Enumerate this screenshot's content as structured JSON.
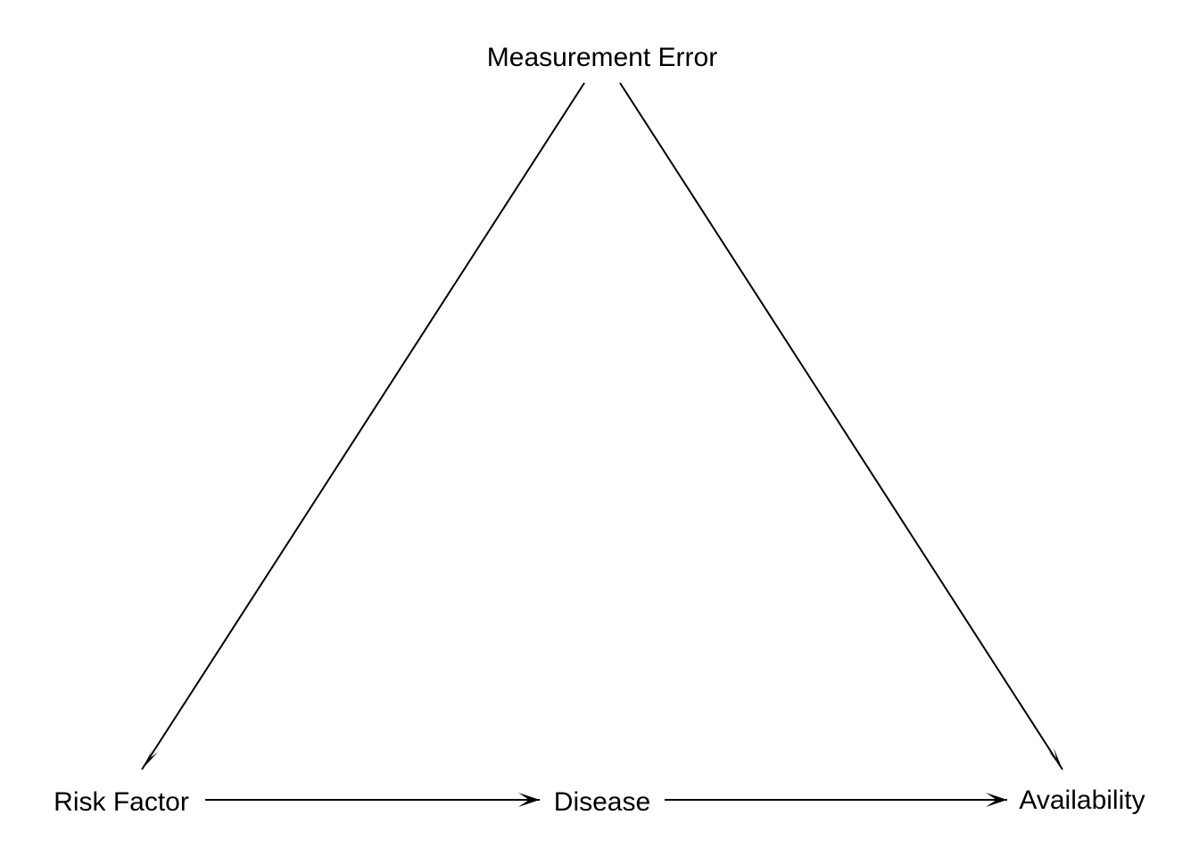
{
  "colors": {
    "background": "#ffffff",
    "ink": "#000000"
  },
  "nodes": {
    "measurement_error": "Measurement Error",
    "risk_factor": "Risk Factor",
    "disease": "Disease",
    "availability": "Availability"
  },
  "edges": [
    {
      "from": "Measurement Error",
      "to": "Risk Factor"
    },
    {
      "from": "Measurement Error",
      "to": "Availability"
    },
    {
      "from": "Risk Factor",
      "to": "Disease"
    },
    {
      "from": "Disease",
      "to": "Availability"
    }
  ]
}
